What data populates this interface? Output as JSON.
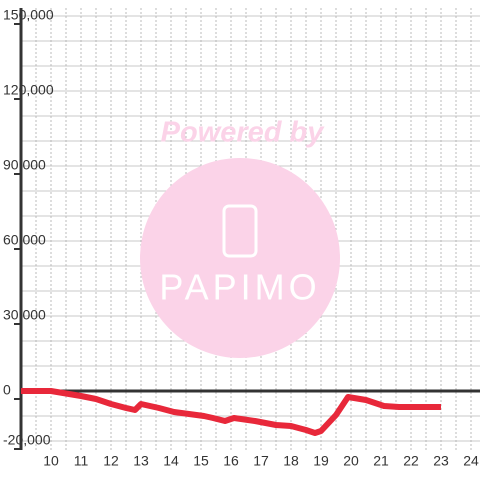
{
  "chart_data": {
    "type": "line",
    "watermark_title": "Powered by",
    "watermark_logo": "PAPIMO",
    "x": [
      9,
      10,
      11,
      11.5,
      12,
      12.5,
      12.8,
      13,
      13.6,
      14.1,
      14.6,
      15.1,
      15.4,
      15.8,
      16.1,
      16.8,
      17.5,
      18,
      18.5,
      18.8,
      19,
      19.5,
      19.9,
      20.5,
      21.1,
      21.6,
      23
    ],
    "series": [
      {
        "color": "#e8283a",
        "values": [
          0,
          0,
          -2000,
          -3200,
          -5200,
          -6800,
          -7600,
          -5200,
          -6800,
          -8400,
          -9200,
          -10000,
          -10800,
          -12000,
          -10800,
          -12000,
          -13600,
          -14000,
          -15600,
          -16800,
          -16000,
          -9600,
          -2400,
          -3600,
          -6000,
          -6400,
          -6400
        ]
      }
    ],
    "xlim": [
      9,
      24.3
    ],
    "ylim": [
      -20000,
      150000
    ],
    "xticks": [
      10,
      11,
      12,
      13,
      14,
      15,
      16,
      17,
      18,
      19,
      20,
      21,
      22,
      23,
      24
    ],
    "yticks": [
      {
        "value": -20000,
        "label": "-20,000"
      },
      0,
      {
        "value": 30000,
        "label": "30,000"
      },
      {
        "value": 60000,
        "label": "60,000"
      },
      {
        "value": 90000,
        "label": "90,000"
      },
      {
        "value": 120000,
        "label": "120,000"
      },
      {
        "value": 150000,
        "label": "150,000"
      }
    ],
    "y_grid_lines": [
      -20000,
      -10000,
      10000,
      20000,
      30000,
      40000,
      50000,
      60000,
      70000,
      80000,
      90000,
      100000,
      110000,
      120000,
      130000,
      140000,
      150000
    ],
    "x_grid_lines": [
      9.5,
      10,
      10.5,
      11,
      11.5,
      12,
      12.5,
      13,
      13.5,
      14,
      14.5,
      15,
      15.5,
      16,
      16.5,
      17,
      17.5,
      18,
      18.5,
      19,
      19.5,
      20,
      20.5,
      21,
      21.5,
      22,
      22.5,
      23,
      23.5,
      24
    ],
    "grid": true
  }
}
